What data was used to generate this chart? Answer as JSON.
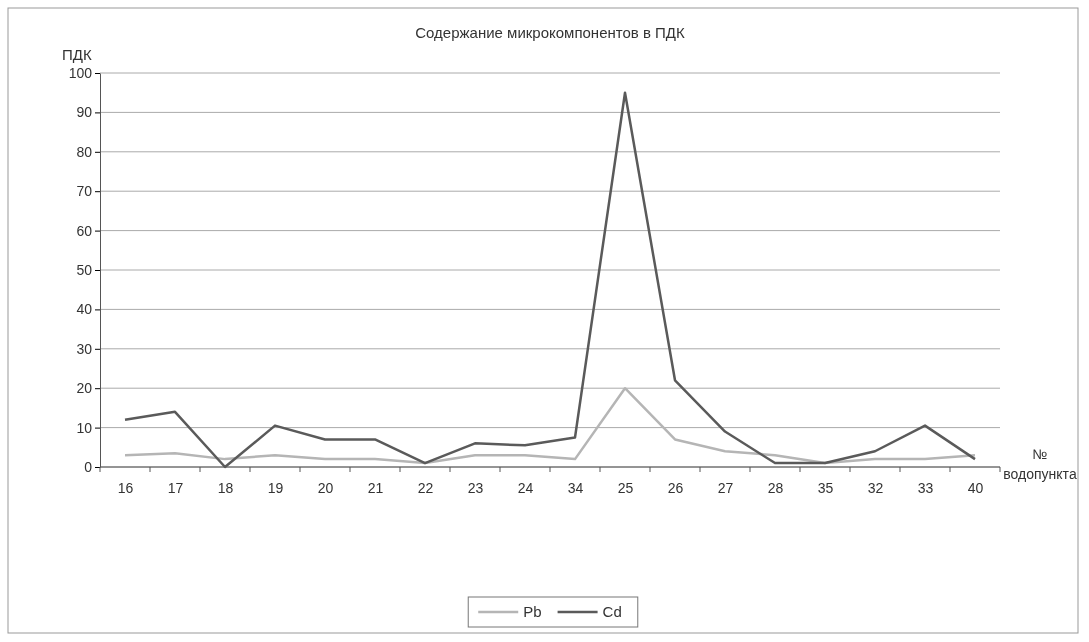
{
  "chart_data": {
    "type": "line",
    "title": "Содержание микрокомпонентов в ПДК",
    "ylabel": "ПДК",
    "xlabel": "№ водопункта",
    "categories": [
      "16",
      "17",
      "18",
      "19",
      "20",
      "21",
      "22",
      "23",
      "24",
      "34",
      "25",
      "26",
      "27",
      "28",
      "35",
      "32",
      "33",
      "40"
    ],
    "series": [
      {
        "name": "Pb",
        "color": "#b5b5b5",
        "values": [
          3,
          3.5,
          2,
          3,
          2,
          2,
          1,
          3,
          3,
          2,
          20,
          7,
          4,
          3,
          1,
          2,
          2,
          3
        ]
      },
      {
        "name": "Cd",
        "color": "#5a5a5a",
        "values": [
          12,
          14,
          0,
          10.5,
          7,
          7,
          1,
          6,
          5.5,
          7.5,
          95,
          22,
          9,
          1,
          1,
          4,
          10.5,
          2
        ]
      }
    ],
    "ylim": [
      0,
      100
    ],
    "yticks": [
      0,
      10,
      20,
      30,
      40,
      50,
      60,
      70,
      80,
      90,
      100
    ],
    "grid": "y",
    "legend": "bottom",
    "marker": "none",
    "line_style": "solid"
  }
}
